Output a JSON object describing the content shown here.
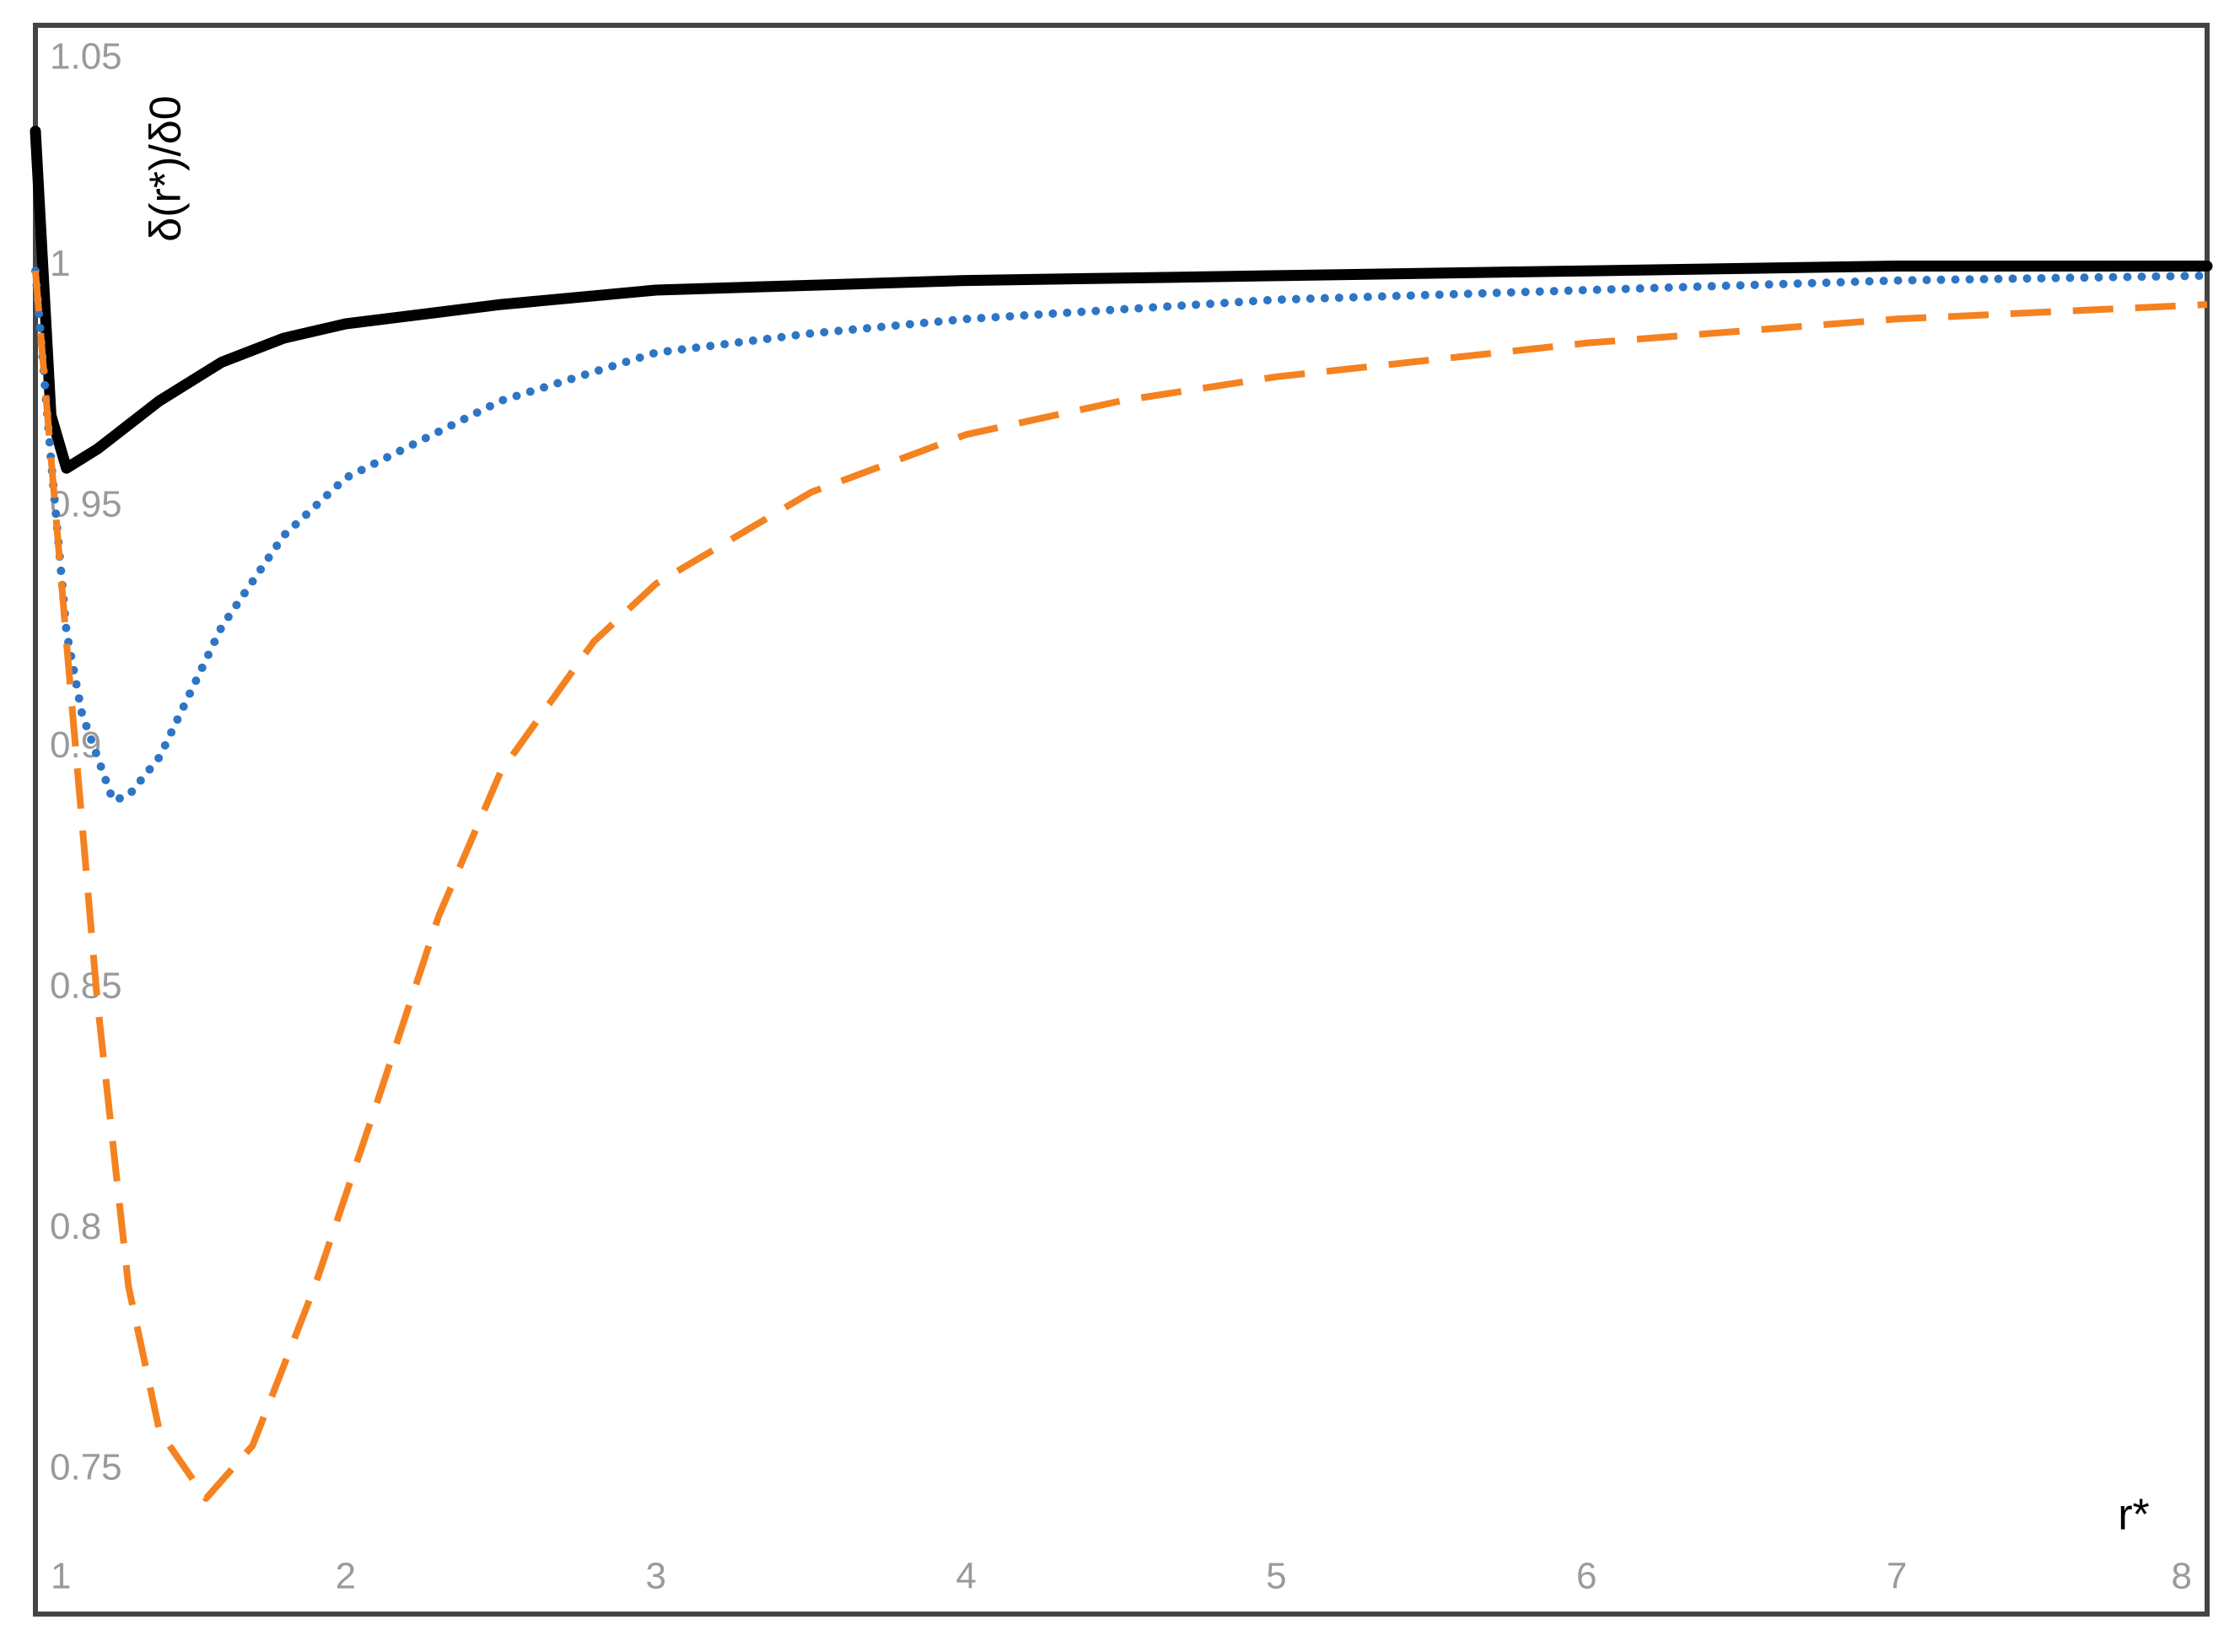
{
  "chart_data": {
    "type": "line",
    "x_label": "r*",
    "y_label": "δ(r*)/δ0",
    "xlim": [
      1,
      8
    ],
    "xticks": [
      1,
      2,
      3,
      4,
      5,
      6,
      7,
      8
    ],
    "ylim": [
      0.72,
      1.05
    ],
    "yticks": [
      0.75,
      0.8,
      0.85,
      0.9,
      0.95,
      1,
      1.05
    ],
    "grid": false,
    "series": [
      {
        "color": "#000000",
        "style": "solid",
        "x": [
          1,
          1.05,
          1.1,
          1.2,
          1.4,
          1.6,
          1.8,
          2,
          2.5,
          3,
          4,
          5,
          6,
          7,
          8
        ],
        "values": [
          1.028,
          0.969,
          0.958,
          0.962,
          0.972,
          0.98,
          0.985,
          0.988,
          0.992,
          0.995,
          0.997,
          0.998,
          0.999,
          1.0,
          1.0
        ]
      },
      {
        "color": "#2e75c4",
        "style": "dotted",
        "x": [
          1,
          1.05,
          1.1,
          1.15,
          1.25,
          1.3,
          1.4,
          1.6,
          1.8,
          2,
          2.5,
          3,
          3.5,
          4,
          5,
          6,
          7,
          8
        ],
        "values": [
          0.999,
          0.96,
          0.924,
          0.907,
          0.889,
          0.89,
          0.898,
          0.925,
          0.944,
          0.956,
          0.972,
          0.982,
          0.986,
          0.989,
          0.993,
          0.995,
          0.997,
          0.998
        ]
      },
      {
        "color": "#f58220",
        "style": "dashed",
        "x": [
          1,
          1.1,
          1.2,
          1.3,
          1.4,
          1.55,
          1.7,
          1.9,
          2.1,
          2.3,
          2.5,
          2.8,
          3,
          3.5,
          4,
          4.5,
          5,
          6,
          7,
          8
        ],
        "values": [
          0.999,
          0.922,
          0.847,
          0.788,
          0.758,
          0.744,
          0.755,
          0.788,
          0.826,
          0.865,
          0.895,
          0.922,
          0.934,
          0.953,
          0.965,
          0.972,
          0.977,
          0.984,
          0.989,
          0.992
        ]
      }
    ]
  }
}
